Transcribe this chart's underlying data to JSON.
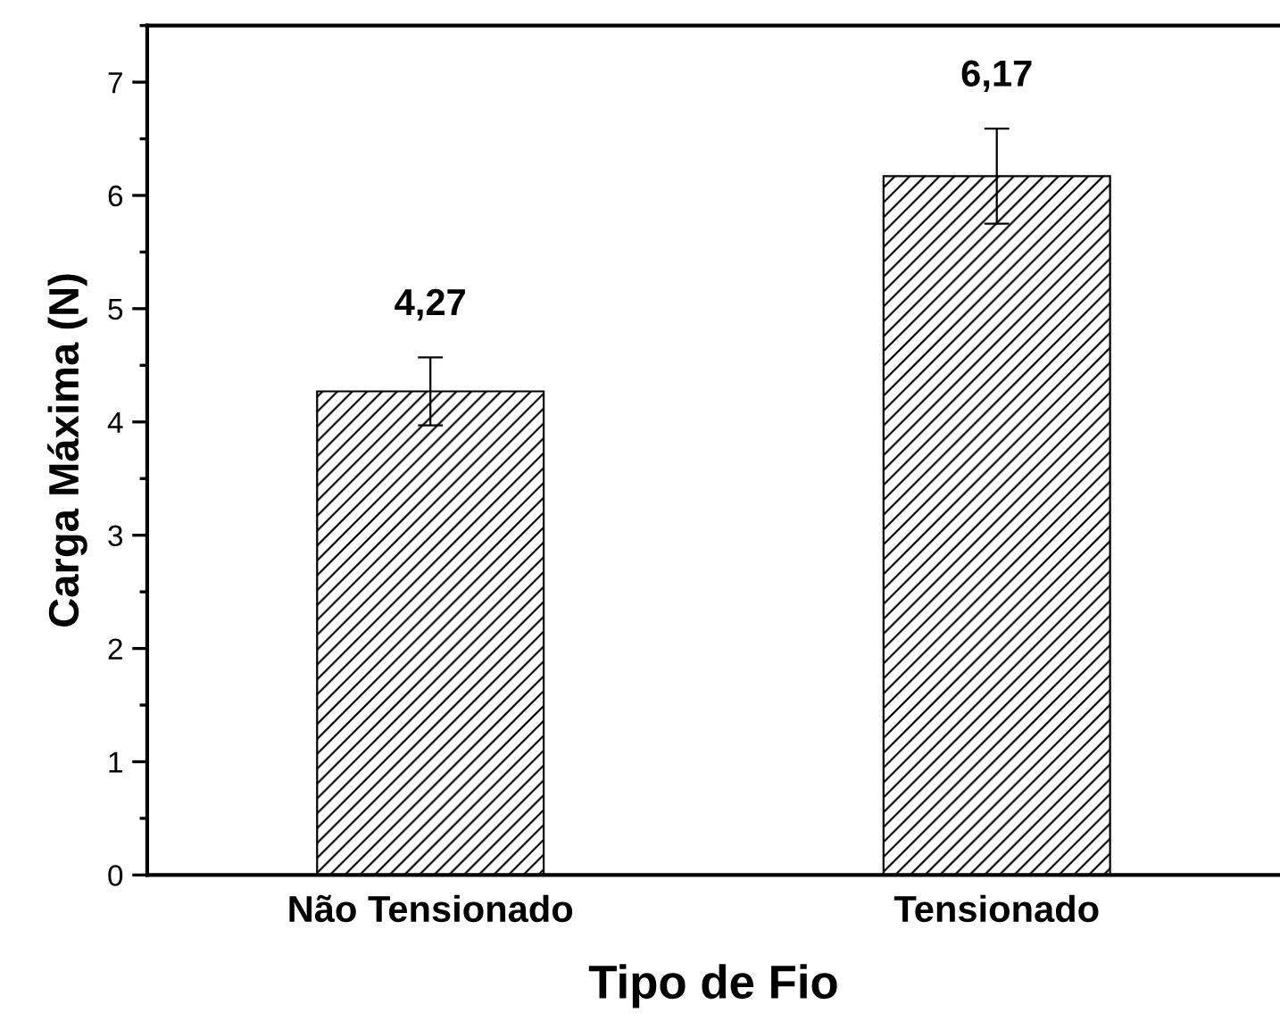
{
  "chart_data": {
    "type": "bar",
    "xlabel": "Tipo de Fio",
    "ylabel": "Carga Máxima (N)",
    "categories": [
      "Não Tensionado",
      "Tensionado"
    ],
    "values": [
      4.27,
      6.17
    ],
    "color": "#000000",
    "errors": [
      0.3,
      0.42
    ],
    "value_labels": [
      "4,27",
      "6,17"
    ],
    "ylim": [
      0,
      7.5
    ],
    "yticks": [
      0,
      1,
      2,
      3,
      4,
      5,
      6,
      7
    ],
    "grid": false
  }
}
